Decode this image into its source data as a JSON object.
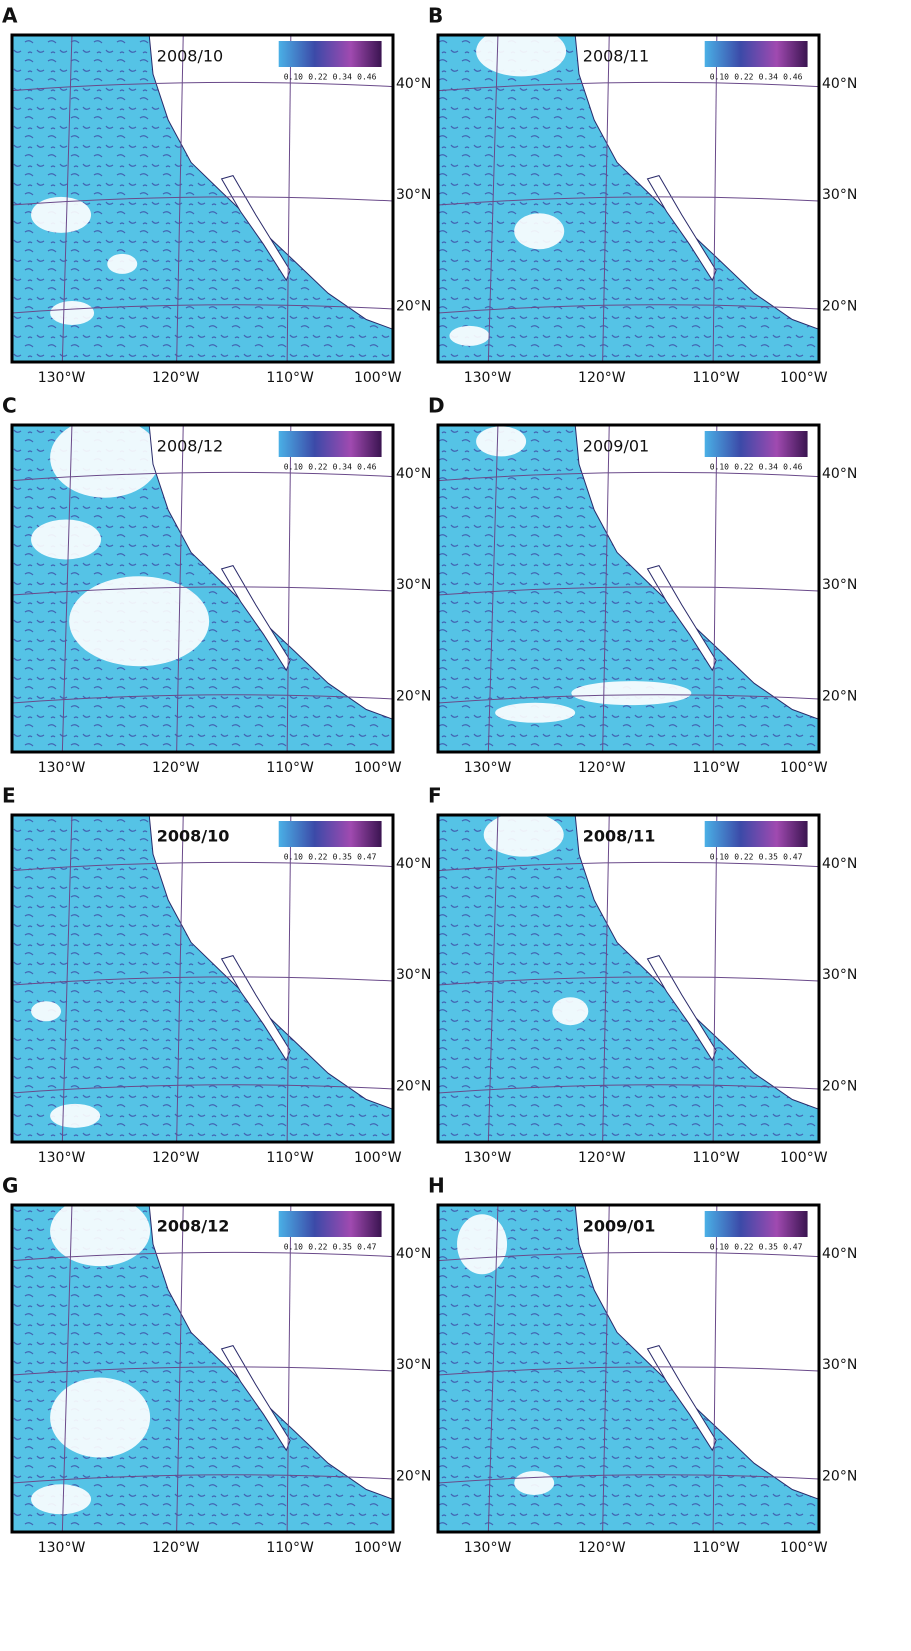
{
  "panels": [
    {
      "letter": "A",
      "date": "2008/10",
      "colorbar_ticks": [
        "0.10",
        "0.22",
        "0.34",
        "0.46"
      ],
      "lat_labels": [
        "40°N",
        "30°N",
        "20°N"
      ],
      "lon_labels": [
        "130°W",
        "120°W",
        "110°W",
        "100°W"
      ]
    },
    {
      "letter": "B",
      "date": "2008/11",
      "colorbar_ticks": [
        "0.10",
        "0.22",
        "0.34",
        "0.46"
      ],
      "lat_labels": [
        "40°N",
        "30°N",
        "20°N"
      ],
      "lon_labels": [
        "130°W",
        "120°W",
        "110°W",
        "100°W"
      ]
    },
    {
      "letter": "C",
      "date": "2008/12",
      "colorbar_ticks": [
        "0.10",
        "0.22",
        "0.34",
        "0.46"
      ],
      "lat_labels": [
        "40°N",
        "30°N",
        "20°N"
      ],
      "lon_labels": [
        "130°W",
        "120°W",
        "110°W",
        "100°W"
      ]
    },
    {
      "letter": "D",
      "date": "2009/01",
      "colorbar_ticks": [
        "0.10",
        "0.22",
        "0.34",
        "0.46"
      ],
      "lat_labels": [
        "40°N",
        "30°N",
        "20°N"
      ],
      "lon_labels": [
        "130°W",
        "120°W",
        "110°W",
        "100°W"
      ]
    },
    {
      "letter": "E",
      "date": "2008/10",
      "colorbar_ticks": [
        "0.10",
        "0.22",
        "0.35",
        "0.47"
      ],
      "lat_labels": [
        "40°N",
        "30°N",
        "20°N"
      ],
      "lon_labels": [
        "130°W",
        "120°W",
        "110°W",
        "100°W"
      ]
    },
    {
      "letter": "F",
      "date": "2008/11",
      "colorbar_ticks": [
        "0.10",
        "0.22",
        "0.35",
        "0.47"
      ],
      "lat_labels": [
        "40°N",
        "30°N",
        "20°N"
      ],
      "lon_labels": [
        "130°W",
        "120°W",
        "110°W",
        "100°W"
      ]
    },
    {
      "letter": "G",
      "date": "2008/12",
      "colorbar_ticks": [
        "0.10",
        "0.22",
        "0.35",
        "0.47"
      ],
      "lat_labels": [
        "40°N",
        "30°N",
        "20°N"
      ],
      "lon_labels": [
        "130°W",
        "120°W",
        "110°W",
        "100°W"
      ]
    },
    {
      "letter": "H",
      "date": "2009/01",
      "colorbar_ticks": [
        "0.10",
        "0.22",
        "0.35",
        "0.47"
      ],
      "lat_labels": [
        "40°N",
        "30°N",
        "20°N"
      ],
      "lon_labels": [
        "130°W",
        "120°W",
        "110°W",
        "100°W"
      ]
    }
  ]
}
